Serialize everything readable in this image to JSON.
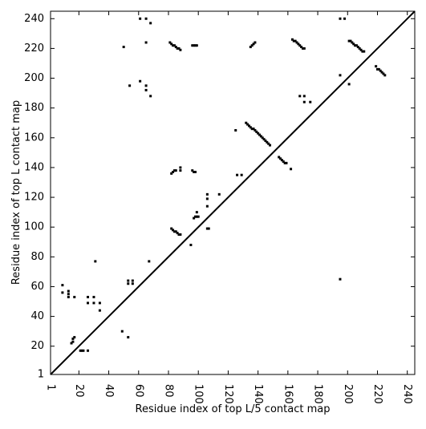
{
  "chart_data": {
    "type": "scatter",
    "xlabel": "Residue index of top L/5 contact map",
    "ylabel": "Residue index of top L contact map",
    "color": "#000000",
    "xlim": [
      1,
      245
    ],
    "ylim": [
      1,
      245
    ],
    "xticks": [
      1,
      20,
      40,
      60,
      80,
      100,
      120,
      140,
      160,
      180,
      200,
      220,
      240
    ],
    "yticks": [
      1,
      20,
      40,
      60,
      80,
      100,
      120,
      140,
      160,
      180,
      200,
      220,
      240
    ],
    "x": [
      61,
      65,
      68,
      50,
      65,
      81,
      82,
      83,
      84,
      85,
      86,
      87,
      88,
      96,
      97,
      98,
      99,
      135,
      136,
      137,
      138,
      163,
      164,
      165,
      166,
      167,
      168,
      169,
      170,
      171,
      195,
      198,
      201,
      202,
      203,
      204,
      205,
      206,
      207,
      208,
      209,
      210,
      211,
      219,
      220,
      221,
      222,
      223,
      224,
      225,
      61,
      65,
      65,
      68,
      54,
      195,
      201,
      168,
      171,
      171,
      175,
      125,
      132,
      133,
      134,
      135,
      136,
      137,
      138,
      139,
      140,
      141,
      142,
      143,
      144,
      145,
      146,
      147,
      148,
      126,
      129,
      154,
      155,
      156,
      157,
      158,
      159,
      162,
      82,
      83,
      84,
      85,
      88,
      88,
      96,
      97,
      98,
      106,
      106,
      114,
      106,
      97,
      98,
      99,
      100,
      99,
      82,
      83,
      84,
      85,
      86,
      87,
      88,
      95,
      106,
      107,
      67,
      31,
      195,
      9,
      9,
      13,
      13,
      17,
      13,
      15,
      16,
      16,
      17,
      21,
      22,
      23,
      26,
      26,
      26,
      30,
      30,
      34,
      34,
      49,
      53,
      53,
      53,
      56,
      56
    ],
    "y": [
      240,
      240,
      237,
      221,
      224,
      224,
      223,
      222,
      222,
      221,
      220,
      220,
      219,
      222,
      222,
      222,
      222,
      221,
      222,
      223,
      224,
      226,
      225,
      225,
      224,
      223,
      222,
      221,
      220,
      220,
      240,
      240,
      225,
      225,
      224,
      223,
      222,
      222,
      221,
      220,
      219,
      218,
      218,
      208,
      206,
      206,
      205,
      204,
      203,
      202,
      198,
      195,
      192,
      188,
      195,
      202,
      196,
      188,
      188,
      184,
      184,
      165,
      170,
      169,
      168,
      167,
      166,
      166,
      165,
      164,
      163,
      162,
      161,
      160,
      159,
      158,
      157,
      156,
      155,
      135,
      135,
      147,
      146,
      145,
      144,
      143,
      143,
      139,
      136,
      137,
      138,
      138,
      140,
      138,
      138,
      137,
      137,
      122,
      119,
      122,
      114,
      106,
      107,
      107,
      107,
      110,
      99,
      98,
      97,
      97,
      96,
      95,
      95,
      88,
      99,
      99,
      77,
      77,
      65,
      61,
      56,
      57,
      55,
      53,
      53,
      22,
      23,
      25,
      26,
      17,
      17,
      17,
      17,
      53,
      49,
      53,
      49,
      44,
      49,
      30,
      26,
      64,
      62,
      64,
      62
    ]
  }
}
